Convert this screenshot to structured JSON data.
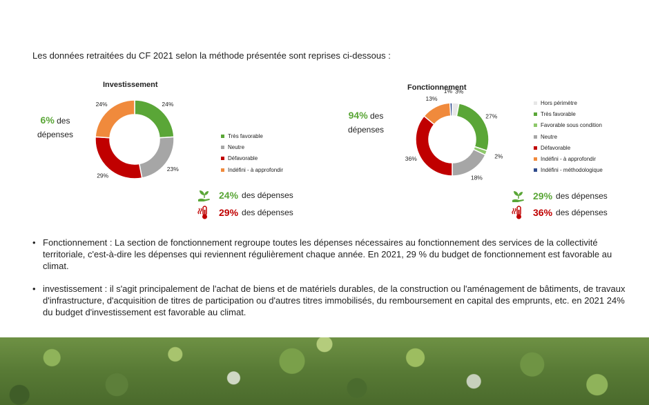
{
  "intro": "Les données retraitées du CF 2021 selon la méthode présentée sont reprises ci-dessous :",
  "investissement": {
    "share_pct": "6%",
    "share_text_1": "des",
    "share_text_2": "dépenses",
    "kpi_favorable": {
      "value": "24%",
      "text": "des dépenses",
      "icon": "seedling-hand-icon"
    },
    "kpi_defavorable": {
      "value": "29%",
      "text": "des dépenses",
      "icon": "thermometer-heat-icon"
    }
  },
  "fonctionnement": {
    "share_pct": "94%",
    "share_text_1": "des",
    "share_text_2": "dépenses",
    "kpi_favorable": {
      "value": "29%",
      "text": "des dépenses",
      "icon": "seedling-hand-icon"
    },
    "kpi_defavorable": {
      "value": "36%",
      "text": "des dépenses",
      "icon": "thermometer-heat-icon"
    }
  },
  "chart_data": [
    {
      "type": "pie",
      "variant": "donut",
      "title": "Investissement",
      "legend_position": "right",
      "slices": [
        {
          "name": "Très favorable",
          "value": 24,
          "label": "24%",
          "color": "#5aa637"
        },
        {
          "name": "Neutre",
          "value": 23,
          "label": "23%",
          "color": "#a6a6a6"
        },
        {
          "name": "Défavorable",
          "value": 29,
          "label": "29%",
          "color": "#c00000"
        },
        {
          "name": "Indéfini - à approfondir",
          "value": 24,
          "label": "24%",
          "color": "#f08a3c"
        }
      ]
    },
    {
      "type": "pie",
      "variant": "donut",
      "title": "Fonctionnement",
      "legend_position": "right",
      "slices": [
        {
          "name": "Hors périmètre",
          "value": 3,
          "label": "3%",
          "color": "#e6e6e6"
        },
        {
          "name": "Très favorable",
          "value": 27,
          "label": "27%",
          "color": "#5aa637"
        },
        {
          "name": "Favorable sous condition",
          "value": 2,
          "label": "2%",
          "color": "#8dc86a"
        },
        {
          "name": "Neutre",
          "value": 18,
          "label": "18%",
          "color": "#a6a6a6"
        },
        {
          "name": "Défavorable",
          "value": 36,
          "label": "36%",
          "color": "#c00000"
        },
        {
          "name": "Indéfini - à approfondir",
          "value": 13,
          "label": "13%",
          "color": "#f08a3c"
        },
        {
          "name": "Indéfini - méthodologique",
          "value": 1,
          "label": "1%",
          "color": "#2f4b8c"
        }
      ]
    }
  ],
  "notes": [
    "Fonctionnement :    La section de fonctionnement regroupe toutes les dépenses nécessaires au fonctionnement des services de la collectivité territoriale, c'est-à-dire les dépenses qui reviennent régulièrement chaque année. En 2021, 29 % du budget de fonctionnement est favorable au climat.",
    "investissement : il s'agit principalement de l'achat de biens et de matériels durables, de la construction ou l'aménagement de bâtiments, de travaux d'infrastructure, d'acquisition de titres de participation ou d'autres titres immobilisés, du remboursement en capital des emprunts, etc. en 2021 24% du budget d'investissement est favorable au climat."
  ]
}
